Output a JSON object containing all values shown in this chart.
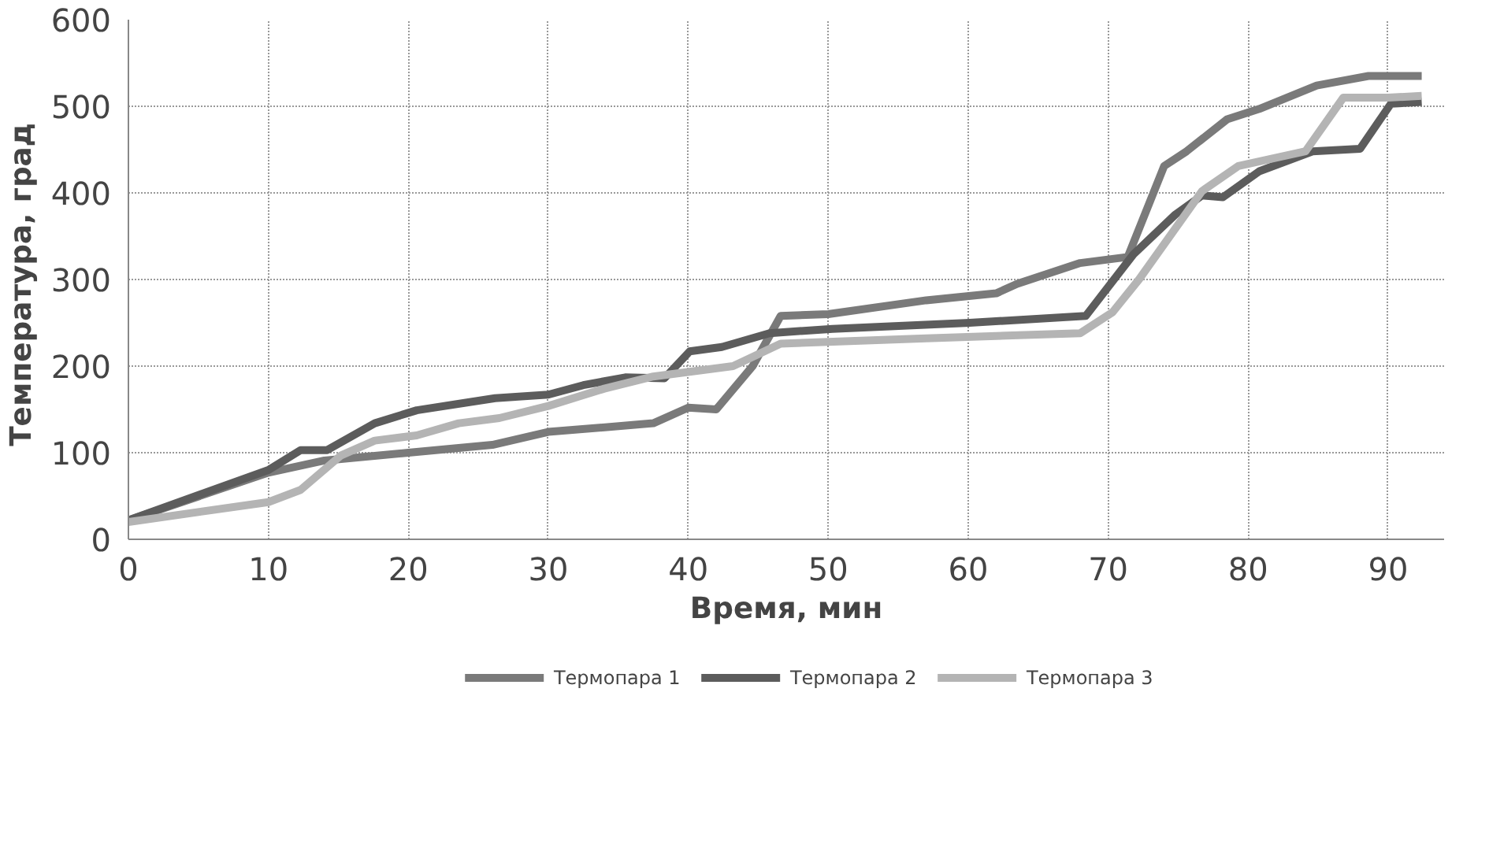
{
  "chart_data": {
    "type": "line",
    "xlabel": "Время, мин",
    "ylabel": "Температура,  град",
    "xlim": [
      0,
      94
    ],
    "ylim": [
      0,
      600
    ],
    "xticks": [
      0,
      10,
      20,
      30,
      40,
      50,
      60,
      70,
      80,
      90
    ],
    "yticks": [
      0,
      100,
      200,
      300,
      400,
      500,
      600
    ],
    "grid": true,
    "legend": "bottom",
    "marker": "none",
    "line_style": "solid",
    "series": [
      {
        "name": "Термопара 1",
        "color": "#7a7a7a",
        "x": [
          0,
          10,
          14,
          20,
          26,
          30,
          37.5,
          40,
          42,
          44.6,
          46.6,
          50,
          57,
          62,
          63.5,
          68,
          71.4,
          74,
          75.6,
          78.5,
          80.8,
          84.9,
          88.6,
          92.4
        ],
        "values": [
          22,
          77,
          91,
          100,
          109,
          124,
          134,
          152,
          150,
          200,
          258,
          260,
          276,
          284,
          295,
          319,
          326,
          431,
          448,
          485,
          497,
          524,
          535,
          535
        ]
      },
      {
        "name": "Термопара 2",
        "color": "#5c5c5c",
        "x": [
          0,
          10,
          12.3,
          14.2,
          17.6,
          20.6,
          26.2,
          30,
          32.5,
          35.5,
          38.3,
          40.1,
          42.4,
          45.8,
          50.3,
          60.1,
          68.4,
          71.8,
          74.8,
          76.7,
          78.2,
          80.8,
          84.6,
          88,
          90.2,
          92.4
        ],
        "values": [
          22,
          80,
          103,
          103,
          134,
          149,
          163,
          167,
          178,
          187,
          186,
          217,
          222,
          238,
          243,
          250,
          258,
          329,
          375,
          397,
          395,
          425,
          448,
          451,
          503,
          505
        ]
      },
      {
        "name": "Термопара 3",
        "color": "#b4b4b4",
        "x": [
          0,
          10,
          12.3,
          15.2,
          17.6,
          20.6,
          23.6,
          26.5,
          30,
          34,
          37.5,
          43.2,
          46.6,
          57,
          68,
          70.3,
          72.2,
          76.7,
          79.3,
          84.1,
          86.8,
          90,
          92.4
        ],
        "values": [
          20,
          43,
          57,
          97,
          114,
          120,
          134,
          140,
          154,
          174,
          188,
          200,
          226,
          232,
          238,
          262,
          300,
          402,
          431,
          448,
          510,
          510,
          512
        ]
      }
    ]
  }
}
